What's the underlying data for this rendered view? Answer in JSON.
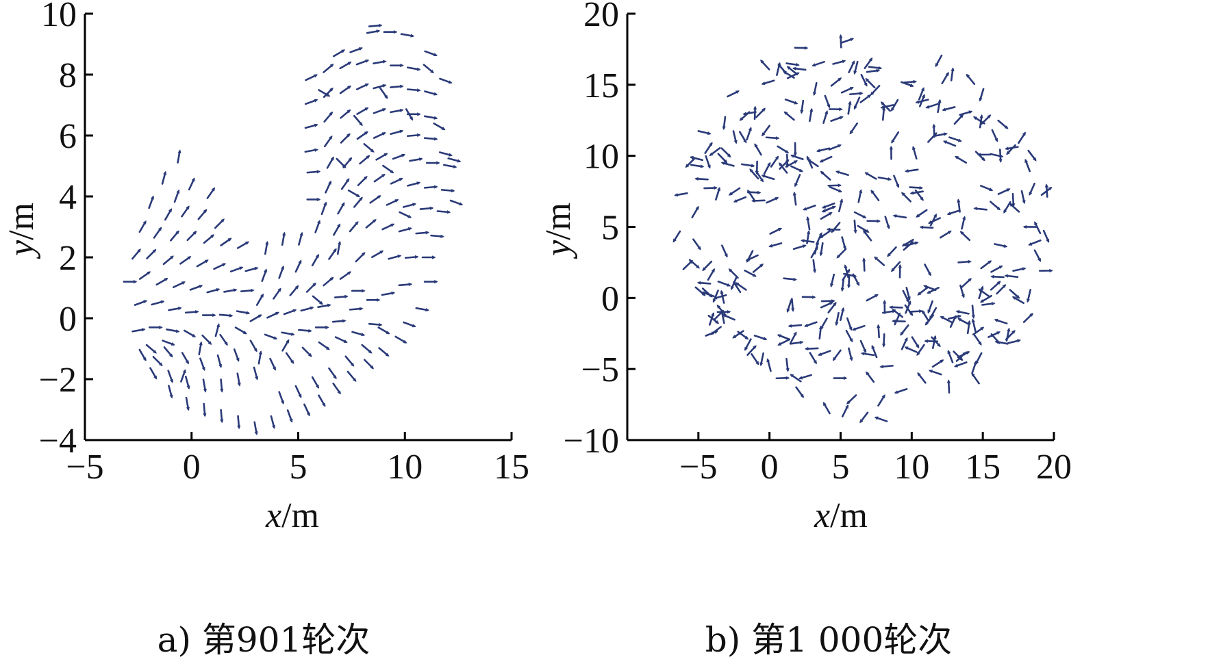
{
  "chart_data": [
    {
      "type": "scatter",
      "marker": "short-arrow",
      "color": "#2a3a78",
      "caption": "a) 第901轮次",
      "xlabel_var": "x",
      "xlabel_unit": "/m",
      "ylabel_var": "y",
      "ylabel_unit": "/m",
      "xlim": [
        -5,
        15
      ],
      "ylim": [
        -4,
        10
      ],
      "xticks": [
        -5,
        0,
        5,
        10,
        15
      ],
      "yticks": [
        -4,
        -2,
        0,
        2,
        4,
        6,
        8,
        10
      ],
      "xtick_labels": [
        "−5",
        "0",
        "5",
        "10",
        "15"
      ],
      "ytick_labels": [
        "−4",
        "−2",
        "0",
        "2",
        "4",
        "6",
        "8",
        "10"
      ],
      "grid": false,
      "points": [
        [
          -0.6,
          5.3,
          80
        ],
        [
          -1.3,
          4.6,
          75
        ],
        [
          -0.7,
          4.0,
          70
        ],
        [
          0.0,
          4.4,
          65
        ],
        [
          0.9,
          4.1,
          55
        ],
        [
          -1.9,
          3.8,
          70
        ],
        [
          -1.1,
          3.4,
          60
        ],
        [
          -0.3,
          3.5,
          55
        ],
        [
          0.5,
          3.4,
          50
        ],
        [
          1.3,
          3.1,
          45
        ],
        [
          -2.3,
          3.0,
          60
        ],
        [
          -1.6,
          2.8,
          55
        ],
        [
          -0.8,
          2.7,
          50
        ],
        [
          0.0,
          2.7,
          45
        ],
        [
          0.8,
          2.6,
          40
        ],
        [
          1.6,
          2.5,
          35
        ],
        [
          2.4,
          2.4,
          30
        ],
        [
          -2.6,
          2.1,
          50
        ],
        [
          -1.9,
          2.1,
          45
        ],
        [
          -1.1,
          1.9,
          40
        ],
        [
          -0.3,
          1.9,
          35
        ],
        [
          0.5,
          1.8,
          30
        ],
        [
          1.3,
          1.7,
          25
        ],
        [
          2.1,
          1.6,
          20
        ],
        [
          2.8,
          1.6,
          15
        ],
        [
          3.5,
          2.3,
          80
        ],
        [
          4.3,
          2.6,
          80
        ],
        [
          5.1,
          2.6,
          75
        ],
        [
          5.9,
          3.0,
          70
        ],
        [
          -2.9,
          1.2,
          0
        ],
        [
          -2.2,
          1.4,
          35
        ],
        [
          -1.4,
          1.2,
          30
        ],
        [
          -0.6,
          1.1,
          25
        ],
        [
          0.2,
          1.0,
          20
        ],
        [
          1.0,
          0.9,
          15
        ],
        [
          1.8,
          0.9,
          10
        ],
        [
          2.6,
          0.9,
          5
        ],
        [
          3.4,
          1.4,
          70
        ],
        [
          4.2,
          1.5,
          70
        ],
        [
          5.0,
          1.7,
          65
        ],
        [
          5.8,
          1.9,
          60
        ],
        [
          6.6,
          2.1,
          55
        ],
        [
          -2.4,
          0.5,
          20
        ],
        [
          -1.6,
          0.5,
          15
        ],
        [
          -0.8,
          0.3,
          10
        ],
        [
          0.0,
          0.2,
          5
        ],
        [
          0.8,
          0.1,
          0
        ],
        [
          1.6,
          0.1,
          -5
        ],
        [
          2.4,
          0.2,
          -10
        ],
        [
          3.2,
          0.6,
          60
        ],
        [
          4.0,
          0.8,
          55
        ],
        [
          4.8,
          0.9,
          50
        ],
        [
          5.6,
          1.0,
          45
        ],
        [
          6.4,
          1.2,
          40
        ],
        [
          7.2,
          1.4,
          35
        ],
        [
          -2.5,
          -0.4,
          10
        ],
        [
          -1.7,
          -0.3,
          0
        ],
        [
          -0.9,
          -0.4,
          -10
        ],
        [
          -0.1,
          -0.5,
          -30
        ],
        [
          0.7,
          -0.7,
          -45
        ],
        [
          1.5,
          -0.7,
          -55
        ],
        [
          2.3,
          -0.4,
          -30
        ],
        [
          3.0,
          0.0,
          30
        ],
        [
          3.8,
          0.1,
          25
        ],
        [
          4.6,
          0.2,
          20
        ],
        [
          5.4,
          0.3,
          15
        ],
        [
          6.2,
          0.4,
          10
        ],
        [
          7.0,
          0.7,
          5
        ],
        [
          7.8,
          0.9,
          0
        ],
        [
          -1.9,
          -1.0,
          -40
        ],
        [
          -1.1,
          -1.1,
          -50
        ],
        [
          -0.3,
          -1.3,
          -60
        ],
        [
          0.5,
          -1.5,
          -70
        ],
        [
          1.3,
          -1.4,
          -75
        ],
        [
          2.1,
          -1.2,
          -70
        ],
        [
          2.9,
          -0.9,
          -60
        ],
        [
          3.7,
          -0.6,
          -20
        ],
        [
          4.5,
          -0.5,
          -10
        ],
        [
          5.3,
          -0.4,
          -5
        ],
        [
          6.1,
          -0.3,
          0
        ],
        [
          6.9,
          -0.1,
          5
        ],
        [
          7.7,
          0.3,
          5
        ],
        [
          8.5,
          0.6,
          0
        ],
        [
          -1.8,
          -1.8,
          -60
        ],
        [
          -1.0,
          -1.9,
          -70
        ],
        [
          -0.2,
          -2.1,
          -75
        ],
        [
          0.6,
          -2.2,
          -80
        ],
        [
          1.4,
          -2.2,
          -85
        ],
        [
          2.2,
          -2.0,
          -80
        ],
        [
          3.0,
          -1.8,
          -75
        ],
        [
          3.8,
          -1.5,
          -65
        ],
        [
          4.6,
          -1.3,
          -55
        ],
        [
          5.4,
          -1.1,
          -45
        ],
        [
          6.2,
          -0.9,
          -35
        ],
        [
          7.0,
          -0.7,
          -25
        ],
        [
          7.8,
          -0.5,
          -15
        ],
        [
          8.6,
          -0.2,
          -5
        ],
        [
          -1.0,
          -2.4,
          -75
        ],
        [
          -0.2,
          -2.8,
          -80
        ],
        [
          0.6,
          -3.0,
          -85
        ],
        [
          1.4,
          -3.2,
          -85
        ],
        [
          2.2,
          -3.4,
          -85
        ],
        [
          3.0,
          -3.6,
          -80
        ],
        [
          3.8,
          -3.4,
          -75
        ],
        [
          4.6,
          -3.2,
          -70
        ],
        [
          5.4,
          -3.0,
          -65
        ],
        [
          6.1,
          -2.7,
          -60
        ],
        [
          6.8,
          -2.3,
          -55
        ],
        [
          7.5,
          -1.9,
          -50
        ],
        [
          8.3,
          -1.5,
          -45
        ],
        [
          9.0,
          -1.1,
          -40
        ],
        [
          9.8,
          -0.7,
          -30
        ],
        [
          4.2,
          -2.6,
          -70
        ],
        [
          5.0,
          -2.4,
          -65
        ],
        [
          5.8,
          -2.1,
          -60
        ],
        [
          6.6,
          -1.8,
          -55
        ],
        [
          7.4,
          -1.4,
          -50
        ],
        [
          8.2,
          -1.0,
          -40
        ],
        [
          9.0,
          -0.4,
          -30
        ],
        [
          10.2,
          -0.2,
          -20
        ],
        [
          10.8,
          0.3,
          -10
        ],
        [
          9.2,
          0.8,
          10
        ],
        [
          10.0,
          1.1,
          5
        ],
        [
          11.2,
          1.2,
          0
        ],
        [
          7.9,
          2.0,
          45
        ],
        [
          8.7,
          2.1,
          30
        ],
        [
          9.5,
          2.0,
          15
        ],
        [
          10.3,
          2.0,
          5
        ],
        [
          11.1,
          2.0,
          0
        ],
        [
          6.8,
          2.9,
          60
        ],
        [
          7.6,
          3.0,
          50
        ],
        [
          8.4,
          3.1,
          40
        ],
        [
          9.2,
          3.0,
          25
        ],
        [
          10.0,
          2.9,
          15
        ],
        [
          10.8,
          2.8,
          5
        ],
        [
          11.5,
          2.7,
          -5
        ],
        [
          6.2,
          3.6,
          70
        ],
        [
          7.0,
          3.6,
          60
        ],
        [
          7.8,
          3.8,
          50
        ],
        [
          8.6,
          3.9,
          35
        ],
        [
          9.4,
          3.8,
          25
        ],
        [
          10.2,
          3.7,
          15
        ],
        [
          11.0,
          3.6,
          5
        ],
        [
          11.8,
          3.5,
          -5
        ],
        [
          5.7,
          3.9,
          0
        ],
        [
          6.4,
          4.3,
          65
        ],
        [
          7.2,
          4.4,
          55
        ],
        [
          8.0,
          4.5,
          45
        ],
        [
          8.8,
          4.6,
          35
        ],
        [
          9.6,
          4.5,
          25
        ],
        [
          10.4,
          4.4,
          15
        ],
        [
          11.2,
          4.3,
          5
        ],
        [
          12.0,
          4.2,
          -5
        ],
        [
          5.7,
          4.8,
          5
        ],
        [
          6.5,
          5.1,
          60
        ],
        [
          7.3,
          5.1,
          50
        ],
        [
          8.1,
          5.2,
          40
        ],
        [
          8.9,
          5.3,
          30
        ],
        [
          9.7,
          5.3,
          20
        ],
        [
          10.5,
          5.2,
          10
        ],
        [
          11.3,
          5.1,
          0
        ],
        [
          12.1,
          5.0,
          -10
        ],
        [
          5.6,
          5.5,
          10
        ],
        [
          6.4,
          5.8,
          55
        ],
        [
          7.2,
          5.9,
          45
        ],
        [
          8.0,
          6.0,
          35
        ],
        [
          8.8,
          6.0,
          25
        ],
        [
          9.6,
          6.1,
          15
        ],
        [
          10.4,
          6.0,
          5
        ],
        [
          11.2,
          5.9,
          -5
        ],
        [
          11.9,
          5.4,
          -15
        ],
        [
          5.6,
          6.3,
          15
        ],
        [
          6.4,
          6.6,
          50
        ],
        [
          7.2,
          6.7,
          40
        ],
        [
          8.0,
          6.8,
          30
        ],
        [
          8.8,
          6.8,
          20
        ],
        [
          9.6,
          6.8,
          10
        ],
        [
          10.4,
          6.7,
          0
        ],
        [
          11.2,
          6.6,
          -10
        ],
        [
          5.6,
          7.1,
          20
        ],
        [
          6.4,
          7.4,
          45
        ],
        [
          7.2,
          7.5,
          35
        ],
        [
          8.0,
          7.6,
          25
        ],
        [
          8.8,
          7.6,
          15
        ],
        [
          9.6,
          7.6,
          5
        ],
        [
          10.4,
          7.5,
          -5
        ],
        [
          11.2,
          7.4,
          -15
        ],
        [
          11.9,
          7.8,
          -20
        ],
        [
          5.6,
          7.9,
          25
        ],
        [
          6.4,
          8.2,
          40
        ],
        [
          7.2,
          8.3,
          30
        ],
        [
          8.0,
          8.4,
          20
        ],
        [
          8.8,
          8.4,
          10
        ],
        [
          9.6,
          8.3,
          0
        ],
        [
          10.4,
          8.2,
          -10
        ],
        [
          11.2,
          8.7,
          -20
        ],
        [
          6.9,
          8.7,
          30
        ],
        [
          7.7,
          8.8,
          20
        ],
        [
          8.5,
          9.4,
          10
        ],
        [
          9.3,
          9.4,
          0
        ],
        [
          10.1,
          9.3,
          -10
        ],
        [
          8.6,
          9.6,
          5
        ],
        [
          7.0,
          5.1,
          -45
        ],
        [
          7.8,
          6.5,
          -50
        ],
        [
          9.0,
          7.4,
          -55
        ],
        [
          10.2,
          6.7,
          -60
        ],
        [
          6.2,
          7.4,
          -30
        ],
        [
          8.3,
          5.6,
          -40
        ],
        [
          9.2,
          4.9,
          -35
        ],
        [
          7.6,
          4.1,
          -30
        ],
        [
          10.0,
          3.4,
          -25
        ],
        [
          6.9,
          2.3,
          80
        ],
        [
          5.9,
          0.6,
          -40
        ],
        [
          4.4,
          -0.9,
          60
        ],
        [
          3.2,
          -1.3,
          80
        ],
        [
          1.2,
          -0.4,
          75
        ],
        [
          0.4,
          -1.0,
          80
        ],
        [
          -0.4,
          -1.9,
          70
        ],
        [
          -1.6,
          -1.4,
          -45
        ],
        [
          -2.3,
          -1.2,
          -60
        ],
        [
          -1.1,
          -0.8,
          -20
        ],
        [
          12.4,
          3.8,
          -20
        ],
        [
          12.3,
          5.2,
          -15
        ],
        [
          11.6,
          6.3,
          -30
        ],
        [
          11.1,
          8.2,
          -40
        ]
      ]
    },
    {
      "type": "scatter",
      "marker": "short-arrow",
      "color": "#2a3a78",
      "caption": "b) 第1 000轮次",
      "xlabel_var": "x",
      "xlabel_unit": "/m",
      "ylabel_var": "y",
      "ylabel_unit": "/m",
      "xlim": [
        -10,
        20
      ],
      "ylim": [
        -10,
        20
      ],
      "xticks": [
        -5,
        0,
        5,
        10,
        15,
        20
      ],
      "yticks": [
        -10,
        -5,
        0,
        5,
        10,
        15,
        20
      ],
      "xtick_labels": [
        "−5",
        "0",
        "5",
        "10",
        "15",
        "20"
      ],
      "ytick_labels": [
        "−10",
        "−5",
        "0",
        "5",
        "10",
        "15",
        "20"
      ],
      "grid": false,
      "scatter_center": [
        6.5,
        4.8
      ],
      "scatter_radius": 13.3,
      "scatter_count": 380,
      "scatter_seed": 90127
    }
  ]
}
